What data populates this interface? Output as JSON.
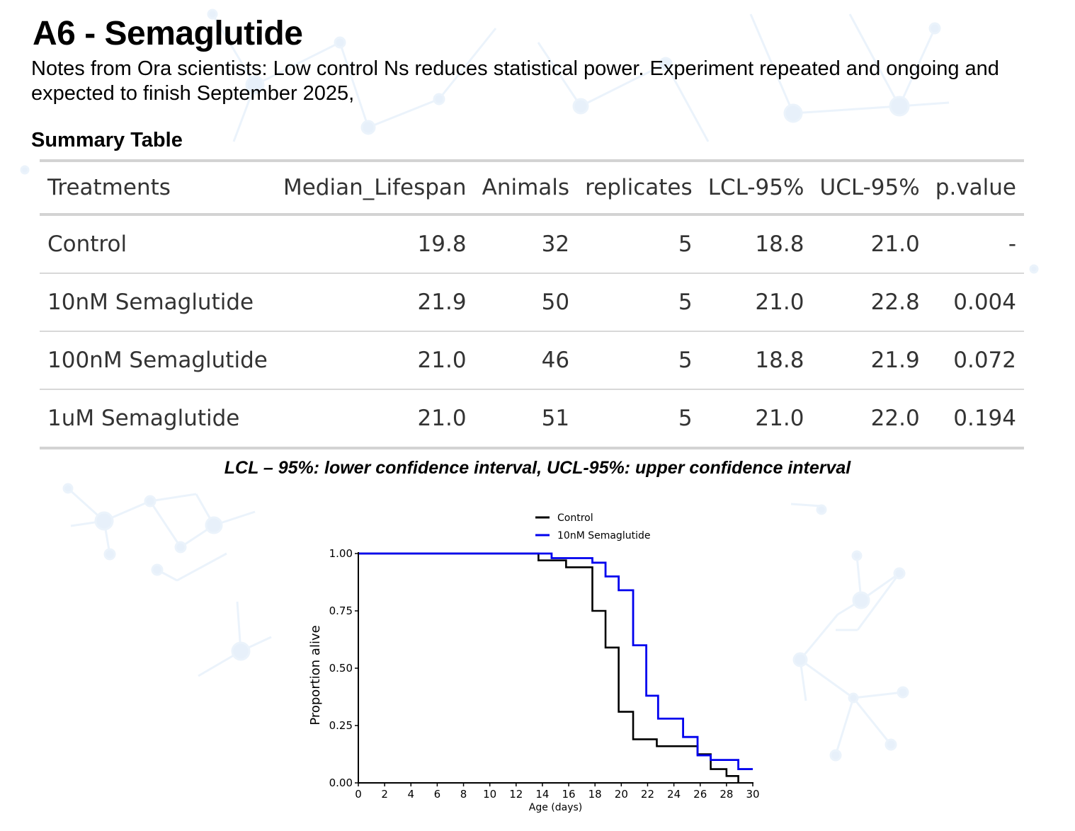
{
  "header": {
    "title": "A6 - Semaglutide",
    "notes": "Notes from Ora scientists: Low control Ns reduces statistical power. Experiment repeated and ongoing and expected to finish September 2025,"
  },
  "summary": {
    "heading": "Summary Table",
    "columns": [
      "Treatments",
      "Median_Lifespan",
      "Animals",
      "replicates",
      "LCL-95%",
      "UCL-95%",
      "p.value"
    ],
    "rows": [
      [
        "Control",
        "19.8",
        "32",
        "5",
        "18.8",
        "21.0",
        "-"
      ],
      [
        "10nM Semaglutide",
        "21.9",
        "50",
        "5",
        "21.0",
        "22.8",
        "0.004"
      ],
      [
        "100nM Semaglutide",
        "21.0",
        "46",
        "5",
        "18.8",
        "21.9",
        "0.072"
      ],
      [
        "1uM Semaglutide",
        "21.0",
        "51",
        "5",
        "21.0",
        "22.0",
        "0.194"
      ]
    ],
    "footnote": "LCL – 95%: lower confidence interval, UCL-95%: upper confidence interval"
  },
  "chart_data": {
    "type": "line",
    "subtype": "step (Kaplan-Meier survival)",
    "title": "",
    "xlabel": "Age (days)",
    "ylabel": "Proportion alive",
    "xlim": [
      0,
      30
    ],
    "ylim": [
      0,
      1
    ],
    "xticks": [
      "0",
      "2",
      "4",
      "6",
      "8",
      "10",
      "12",
      "14",
      "16",
      "18",
      "20",
      "22",
      "24",
      "26",
      "28",
      "30"
    ],
    "yticks": [
      "0.00",
      "0.25",
      "0.50",
      "0.75",
      "1.00"
    ],
    "grid": false,
    "legend_position": "top-right",
    "series": [
      {
        "name": "Control",
        "color": "#000000",
        "x": [
          0,
          13.7,
          15.8,
          17.8,
          18.8,
          19.8,
          20.9,
          22.7,
          25.8,
          26.8,
          28.0,
          28.9
        ],
        "y": [
          1.0,
          0.97,
          0.94,
          0.75,
          0.59,
          0.31,
          0.19,
          0.16,
          0.125,
          0.06,
          0.03,
          0.0
        ]
      },
      {
        "name": "10nM Semaglutide",
        "color": "#0000ee",
        "x": [
          0,
          14.7,
          17.8,
          18.8,
          19.8,
          20.9,
          21.9,
          22.8,
          24.7,
          25.8,
          26.8,
          28.9,
          30
        ],
        "y": [
          1.0,
          0.98,
          0.96,
          0.9,
          0.84,
          0.6,
          0.38,
          0.28,
          0.2,
          0.12,
          0.1,
          0.06,
          0.06
        ]
      }
    ]
  }
}
